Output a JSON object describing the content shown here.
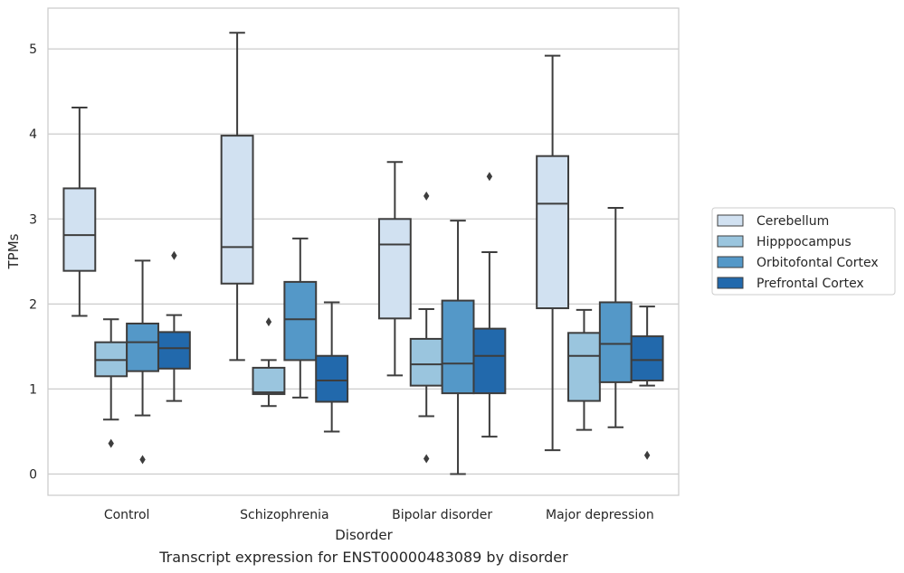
{
  "chart_data": {
    "type": "box",
    "xlabel": "Disorder",
    "ylabel": "TPMs",
    "caption": "Transcript expression for ENST00000483089 by disorder",
    "ylim": [
      -0.25,
      5.48
    ],
    "yticks": [
      0,
      1,
      2,
      3,
      4,
      5
    ],
    "grid": "horizontal",
    "legend_position": "right",
    "categories": [
      "Control",
      "Schizophrenia",
      "Bipolar disorder",
      "Major depression"
    ],
    "series": [
      {
        "name": "Cerebellum",
        "color": "#d1e1f1",
        "boxes": [
          {
            "min": 1.86,
            "q1": 2.39,
            "median": 2.81,
            "q3": 3.36,
            "max": 4.31,
            "outliers": []
          },
          {
            "min": 1.34,
            "q1": 2.24,
            "median": 2.67,
            "q3": 3.98,
            "max": 5.19,
            "outliers": []
          },
          {
            "min": 1.16,
            "q1": 1.83,
            "median": 2.7,
            "q3": 3.0,
            "max": 3.67,
            "outliers": []
          },
          {
            "min": 0.28,
            "q1": 1.95,
            "median": 3.18,
            "q3": 3.74,
            "max": 4.92,
            "outliers": []
          }
        ]
      },
      {
        "name": "Hipppocampus",
        "color": "#9ac5de",
        "boxes": [
          {
            "min": 0.64,
            "q1": 1.15,
            "median": 1.34,
            "q3": 1.55,
            "max": 1.82,
            "outliers": [
              0.36
            ]
          },
          {
            "min": 0.8,
            "q1": 0.94,
            "median": 0.96,
            "q3": 1.25,
            "max": 1.34,
            "outliers": [
              1.79
            ]
          },
          {
            "min": 0.68,
            "q1": 1.04,
            "median": 1.29,
            "q3": 1.59,
            "max": 1.94,
            "outliers": [
              3.27,
              0.18
            ]
          },
          {
            "min": 0.52,
            "q1": 0.86,
            "median": 1.39,
            "q3": 1.66,
            "max": 1.93,
            "outliers": []
          }
        ]
      },
      {
        "name": "Orbitofontal Cortex",
        "color": "#5498c8",
        "boxes": [
          {
            "min": 0.69,
            "q1": 1.21,
            "median": 1.55,
            "q3": 1.77,
            "max": 2.51,
            "outliers": [
              0.17
            ]
          },
          {
            "min": 0.9,
            "q1": 1.34,
            "median": 1.82,
            "q3": 2.26,
            "max": 2.77,
            "outliers": []
          },
          {
            "min": 0.0,
            "q1": 0.95,
            "median": 1.3,
            "q3": 2.04,
            "max": 2.98,
            "outliers": []
          },
          {
            "min": 0.55,
            "q1": 1.08,
            "median": 1.53,
            "q3": 2.02,
            "max": 3.13,
            "outliers": []
          }
        ]
      },
      {
        "name": "Prefrontal Cortex",
        "color": "#2269ac",
        "boxes": [
          {
            "min": 0.86,
            "q1": 1.24,
            "median": 1.48,
            "q3": 1.67,
            "max": 1.87,
            "outliers": [
              2.57
            ]
          },
          {
            "min": 0.5,
            "q1": 0.85,
            "median": 1.1,
            "q3": 1.39,
            "max": 2.02,
            "outliers": []
          },
          {
            "min": 0.44,
            "q1": 0.95,
            "median": 1.39,
            "q3": 1.71,
            "max": 2.61,
            "outliers": [
              3.5
            ]
          },
          {
            "min": 1.04,
            "q1": 1.1,
            "median": 1.34,
            "q3": 1.62,
            "max": 1.97,
            "outliers": [
              0.22
            ]
          }
        ]
      }
    ]
  }
}
